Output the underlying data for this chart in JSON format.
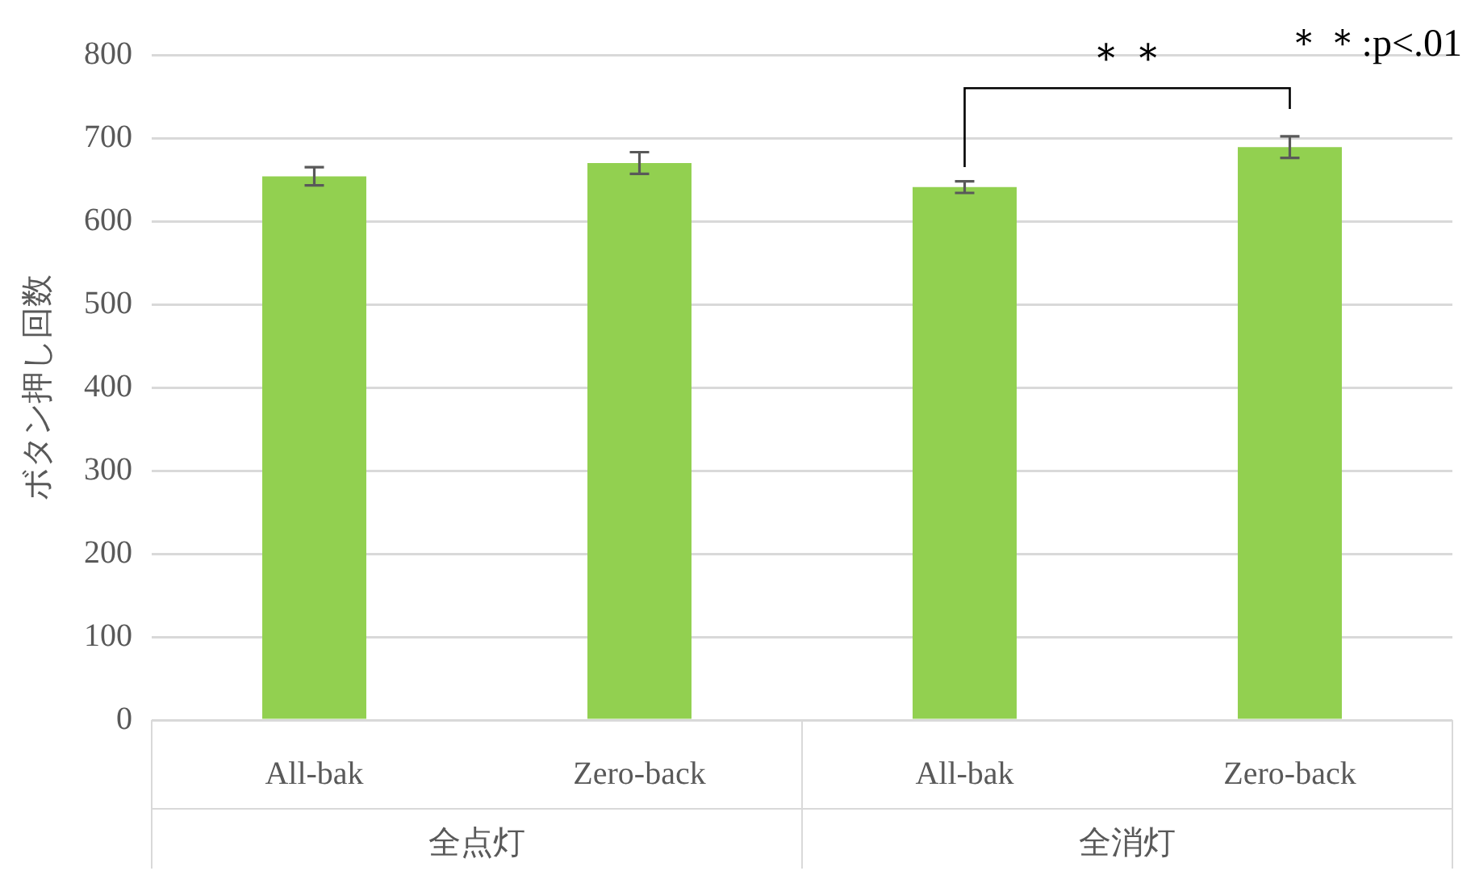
{
  "chart_data": {
    "type": "bar",
    "ylabel": "ボタン押し回数",
    "categories": [
      "All-bak",
      "Zero-back",
      "All-bak",
      "Zero-back"
    ],
    "values": [
      654,
      670,
      641,
      689
    ],
    "errors": [
      11,
      13,
      7,
      13
    ],
    "color": "#92d050",
    "ylim": [
      0,
      800
    ],
    "yticks": [
      0,
      100,
      200,
      300,
      400,
      500,
      600,
      700,
      800
    ],
    "grid": "y",
    "legend": false,
    "annotations": [
      "＊＊",
      "＊＊:p<.01",
      "全点灯",
      "全消灯"
    ]
  }
}
